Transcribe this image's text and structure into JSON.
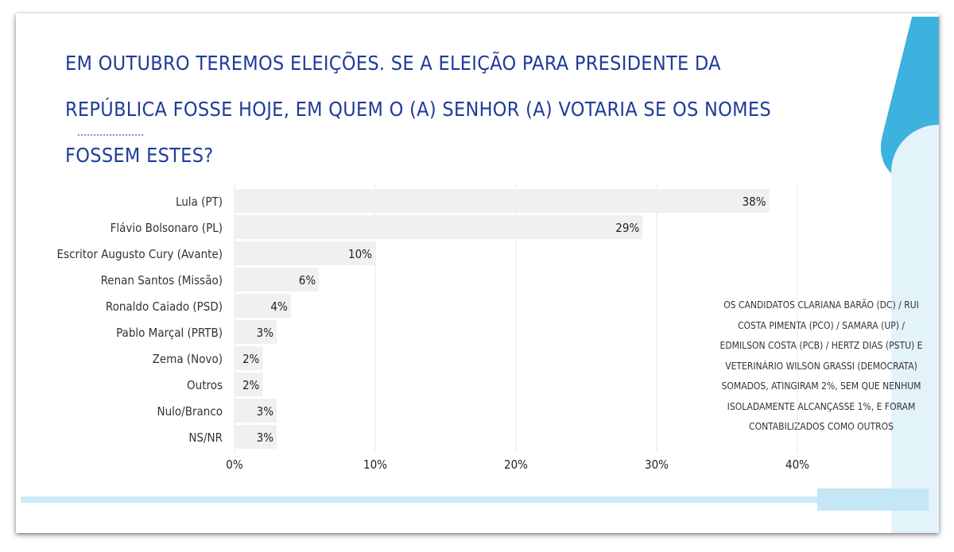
{
  "title": "EM OUTUBRO TEREMOS ELEIÇÕES. SE A ELEIÇÃO PARA PRESIDENTE DA REPÚBLICA FOSSE HOJE, EM QUEM O (A) SENHOR (A) VOTARIA SE OS NOMES FOSSEM ESTES?",
  "note": "OS CANDIDATOS CLARIANA BARÃO (DC) / RUI COSTA PIMENTA (PCO) / SAMARA (UP) / EDMILSON COSTA (PCB) / HERTZ DIAS (PSTU) E VETERINÁRIO WILSON GRASSI (DEMOCRATA) SOMADOS, ATINGIRAM 2%, SEM QUE NENHUM ISOLADAMENTE ALCANÇASSE 1%, E FORAM CONTABILIZADOS COMO OUTROS",
  "colors": {
    "title": "#1f3b9a",
    "bar": "#eef0f1",
    "grid": "#e5e7e9",
    "accent": "#3db2df"
  },
  "chart_data": {
    "type": "bar",
    "orientation": "horizontal",
    "categories": [
      "Lula (PT)",
      "Flávio Bolsonaro (PL)",
      "Escritor Augusto Cury (Avante)",
      "Renan Santos (Missão)",
      "Ronaldo Caiado (PSD)",
      "Pablo Marçal (PRTB)",
      "Zema (Novo)",
      "Outros",
      "Nulo/Branco",
      "NS/NR"
    ],
    "values": [
      38,
      29,
      10,
      6,
      4,
      3,
      2,
      2,
      3,
      3
    ],
    "value_labels": [
      "38%",
      "29%",
      "10%",
      "6%",
      "4%",
      "3%",
      "2%",
      "2%",
      "3%",
      "3%"
    ],
    "xlim": [
      0,
      40
    ],
    "xticks": [
      0,
      10,
      20,
      30,
      40
    ],
    "xtick_labels": [
      "0%",
      "10%",
      "20%",
      "30%",
      "40%"
    ],
    "grid": true
  }
}
